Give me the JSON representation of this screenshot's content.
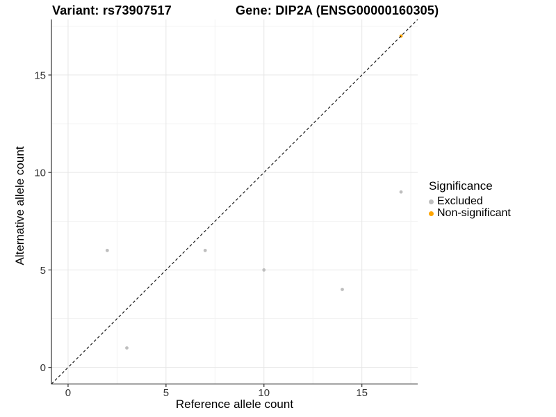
{
  "chart": {
    "title_variant": "Variant: rs73907517",
    "title_gene": "Gene: DIP2A (ENSG00000160305)",
    "xlabel": "Reference allele count",
    "ylabel": "Alternative allele count"
  },
  "legend": {
    "title": "Significance",
    "items": [
      {
        "label": "Excluded",
        "color": "#BEBEBE"
      },
      {
        "label": "Non-significant",
        "color": "#FFA500"
      }
    ]
  },
  "chart_data": {
    "type": "scatter",
    "title": "Variant: rs73907517 / Gene: DIP2A (ENSG00000160305)",
    "xlabel": "Reference allele count",
    "ylabel": "Alternative allele count",
    "xlim": [
      -0.85,
      17.85
    ],
    "ylim": [
      -0.85,
      17.85
    ],
    "x_ticks": [
      0,
      5,
      10,
      15
    ],
    "y_ticks": [
      0,
      5,
      10,
      15
    ],
    "minor_ticks": [
      2.5,
      7.5,
      12.5,
      17.5
    ],
    "grid": true,
    "legend_title": "Significance",
    "legend_position": "right",
    "reference_line": {
      "type": "identity",
      "style": "dashed",
      "color": "#1a1a1a"
    },
    "series": [
      {
        "name": "Excluded",
        "color": "#BEBEBE",
        "points": [
          [
            2,
            6
          ],
          [
            3,
            1
          ],
          [
            7,
            6
          ],
          [
            10,
            5
          ],
          [
            14,
            4
          ],
          [
            17,
            9
          ]
        ]
      },
      {
        "name": "Non-significant",
        "color": "#FFA500",
        "points": [
          [
            17,
            17
          ]
        ]
      }
    ],
    "colors": {
      "grid_major": "#e6e6e6",
      "grid_minor": "#f1f1f1",
      "axis": "#333333",
      "tick_label": "#333333"
    }
  }
}
